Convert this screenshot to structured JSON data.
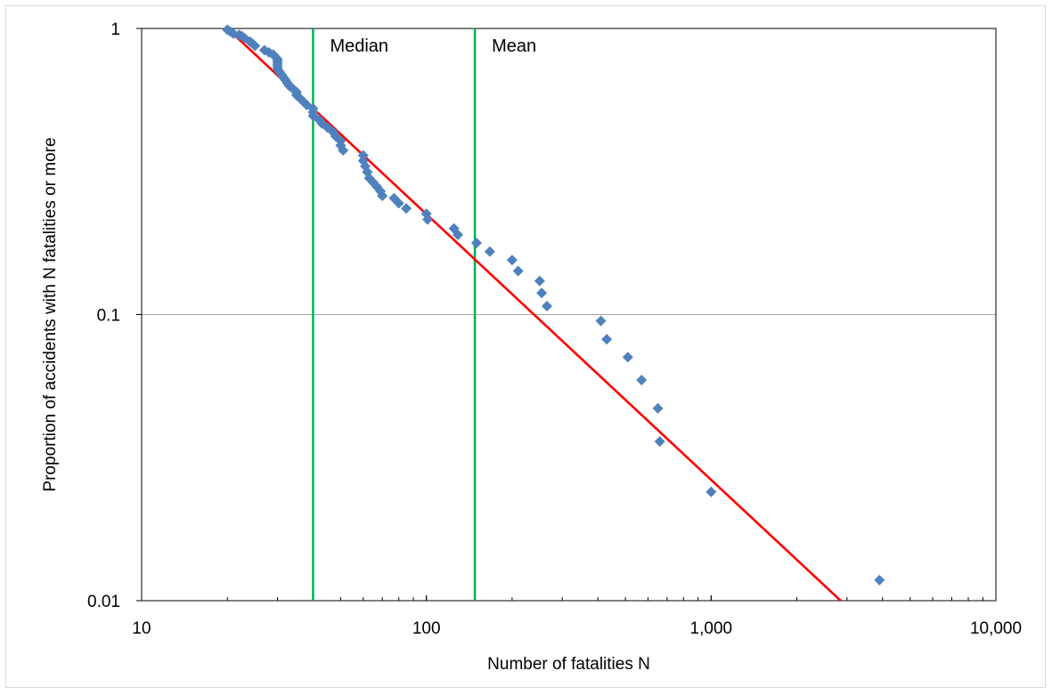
{
  "chart_data": {
    "type": "scatter",
    "xlabel": "Number of fatalities N",
    "ylabel": "Proportion of accidents with N fatalities or more",
    "x_scale": "log",
    "y_scale": "log",
    "xlim": [
      10,
      10000
    ],
    "ylim": [
      0.01,
      1
    ],
    "x_ticks": [
      {
        "value": 10,
        "label": "10"
      },
      {
        "value": 100,
        "label": "100"
      },
      {
        "value": 1000,
        "label": "1,000"
      },
      {
        "value": 10000,
        "label": "10,000"
      }
    ],
    "y_ticks": [
      {
        "value": 1,
        "label": "1"
      },
      {
        "value": 0.1,
        "label": "0.1"
      },
      {
        "value": 0.01,
        "label": "0.01"
      }
    ],
    "grid": "horizontal major gridlines at 0.1",
    "legend": "none",
    "series": [
      {
        "type": "scatter",
        "color": "#4f81bd",
        "marker": "diamond",
        "points": [
          [
            20,
            0.99
          ],
          [
            20.5,
            0.975
          ],
          [
            21,
            0.96
          ],
          [
            22,
            0.95
          ],
          [
            22.5,
            0.94
          ],
          [
            23,
            0.925
          ],
          [
            24,
            0.9
          ],
          [
            24.5,
            0.885
          ],
          [
            25,
            0.87
          ],
          [
            27,
            0.84
          ],
          [
            28,
            0.825
          ],
          [
            29,
            0.81
          ],
          [
            29.5,
            0.795
          ],
          [
            30,
            0.78
          ],
          [
            30,
            0.765
          ],
          [
            30,
            0.75
          ],
          [
            30,
            0.735
          ],
          [
            30,
            0.72
          ],
          [
            30.5,
            0.705
          ],
          [
            31,
            0.69
          ],
          [
            31.5,
            0.675
          ],
          [
            32,
            0.66
          ],
          [
            32.5,
            0.645
          ],
          [
            33,
            0.63
          ],
          [
            34,
            0.615
          ],
          [
            35,
            0.6
          ],
          [
            35,
            0.585
          ],
          [
            36,
            0.57
          ],
          [
            37,
            0.555
          ],
          [
            38,
            0.54
          ],
          [
            40,
            0.525
          ],
          [
            40,
            0.51
          ],
          [
            40,
            0.495
          ],
          [
            42,
            0.48
          ],
          [
            43,
            0.465
          ],
          [
            45,
            0.45
          ],
          [
            47,
            0.435
          ],
          [
            48,
            0.42
          ],
          [
            50,
            0.405
          ],
          [
            50,
            0.39
          ],
          [
            51,
            0.375
          ],
          [
            60,
            0.36
          ],
          [
            60,
            0.345
          ],
          [
            61,
            0.33
          ],
          [
            62,
            0.315
          ],
          [
            63,
            0.3
          ],
          [
            65,
            0.29
          ],
          [
            67,
            0.28
          ],
          [
            69,
            0.27
          ],
          [
            70,
            0.26
          ],
          [
            77,
            0.255
          ],
          [
            80,
            0.245
          ],
          [
            85,
            0.235
          ],
          [
            100,
            0.225
          ],
          [
            101,
            0.215
          ],
          [
            125,
            0.2
          ],
          [
            129,
            0.19
          ],
          [
            150,
            0.178
          ],
          [
            167,
            0.166
          ],
          [
            200,
            0.155
          ],
          [
            210,
            0.142
          ],
          [
            250,
            0.131
          ],
          [
            254,
            0.119
          ],
          [
            265,
            0.107
          ],
          [
            410,
            0.095
          ],
          [
            430,
            0.082
          ],
          [
            510,
            0.071
          ],
          [
            570,
            0.059
          ],
          [
            650,
            0.047
          ],
          [
            660,
            0.036
          ],
          [
            1000,
            0.024
          ],
          [
            3900,
            0.0118
          ]
        ]
      },
      {
        "type": "line",
        "color": "#ff0000",
        "points": [
          [
            20,
            1.0
          ],
          [
            2850,
            0.01
          ]
        ]
      }
    ],
    "annotations": [
      {
        "x": 40,
        "label": "Median",
        "color": "#00b050"
      },
      {
        "x": 148,
        "label": "Mean",
        "color": "#00b050"
      }
    ]
  }
}
